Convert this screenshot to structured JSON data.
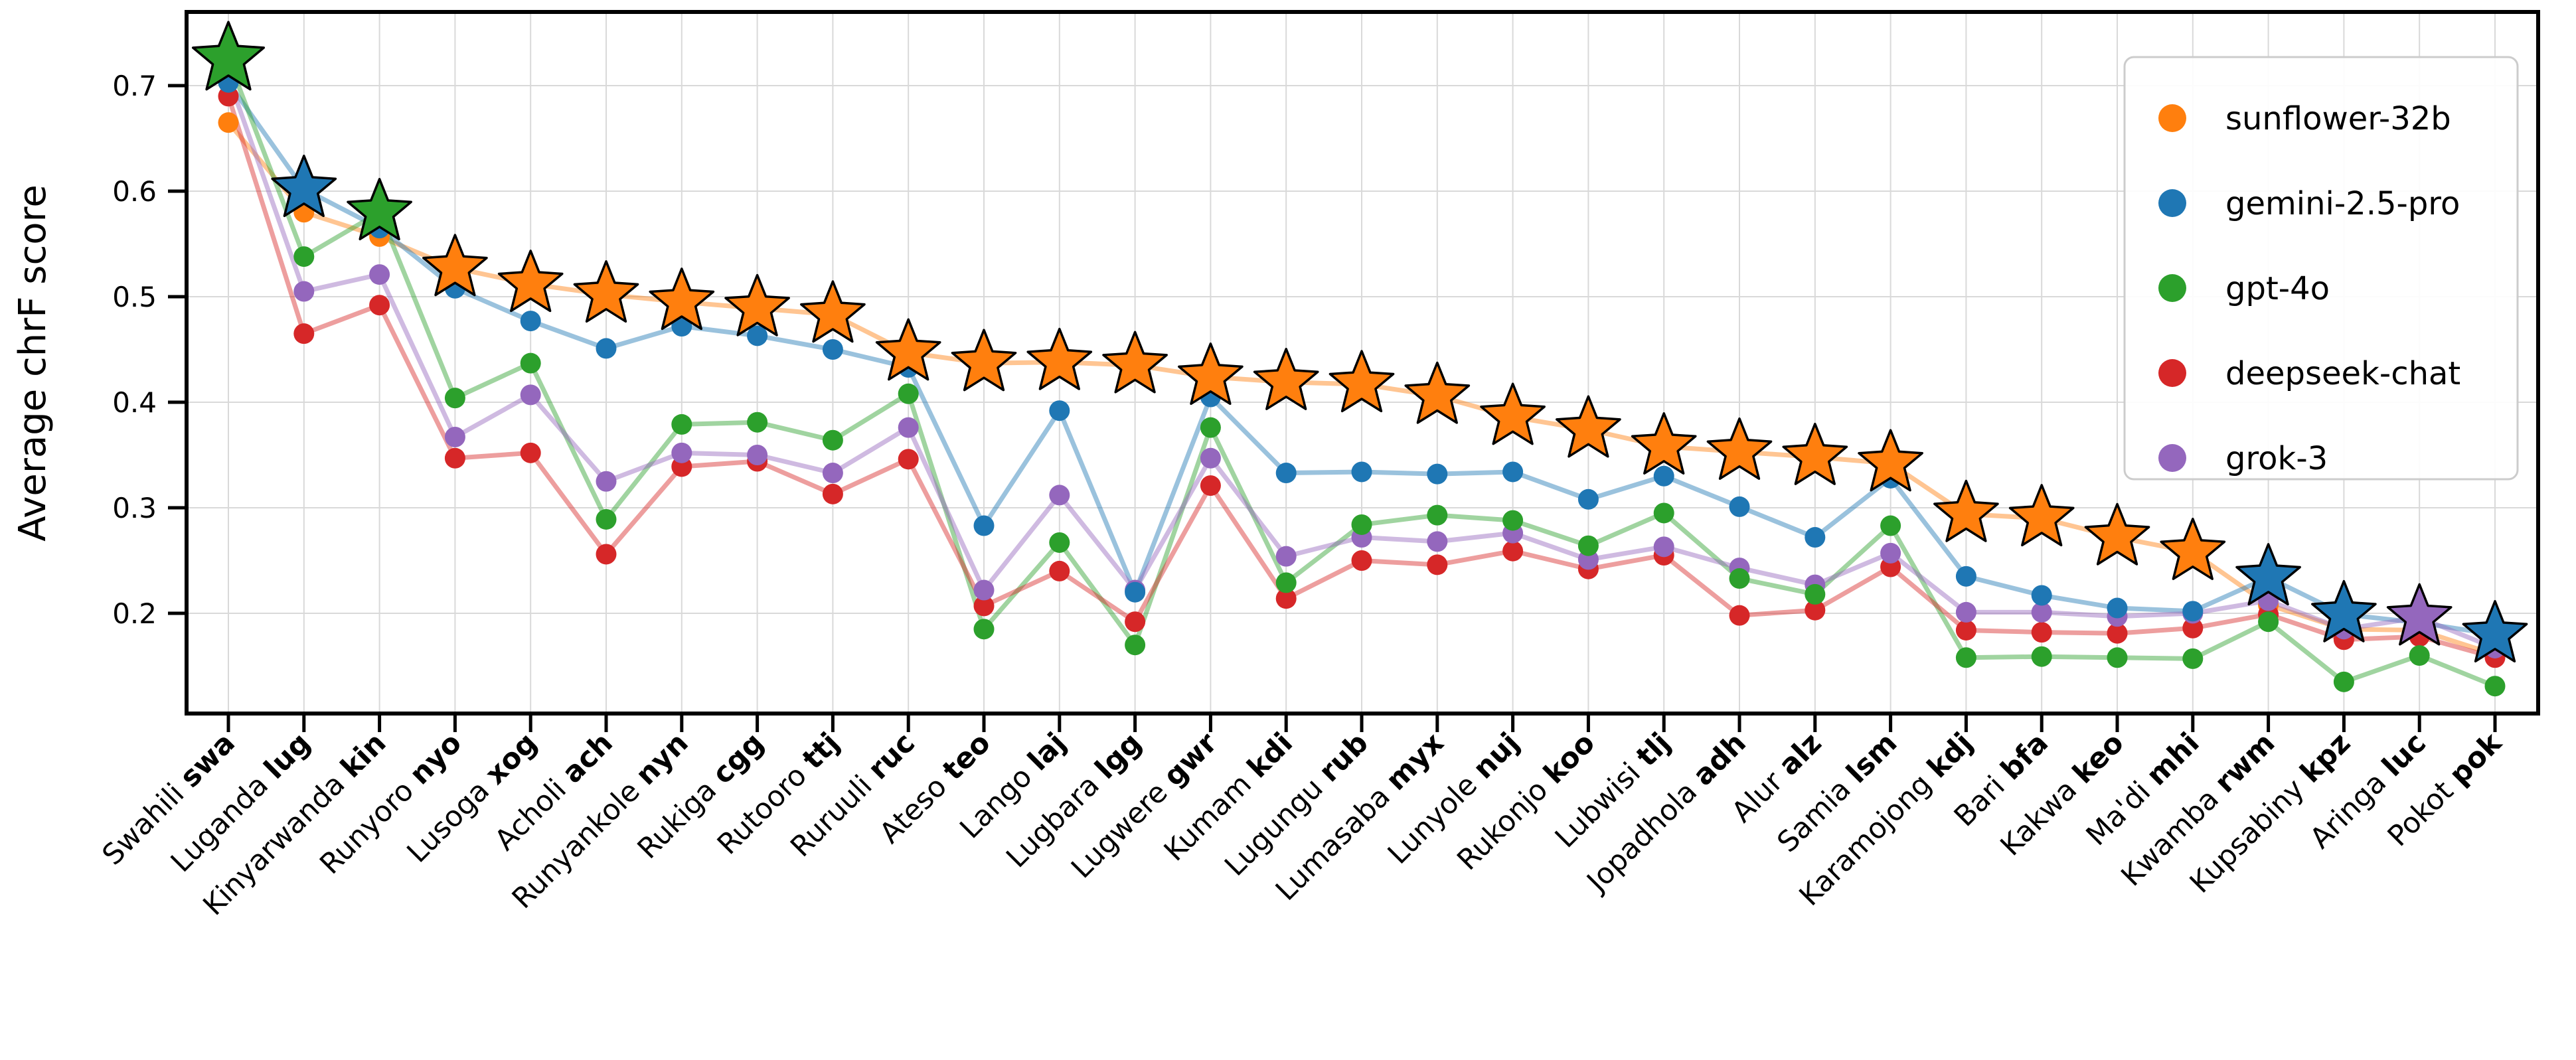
{
  "chart_data": {
    "type": "line",
    "title": "",
    "xlabel": "",
    "ylabel": "Average chrF score",
    "ylim": [
      0.1,
      0.77
    ],
    "yticks": [
      0.2,
      0.3,
      0.4,
      0.5,
      0.6,
      0.7
    ],
    "grid": true,
    "legend_position": "upper right",
    "marker_note": "star marker = best model for that language; circles = other models",
    "categories": [
      {
        "name": "Swahili",
        "code": "swa"
      },
      {
        "name": "Luganda",
        "code": "lug"
      },
      {
        "name": "Kinyarwanda",
        "code": "kin"
      },
      {
        "name": "Runyoro",
        "code": "nyo"
      },
      {
        "name": "Lusoga",
        "code": "xog"
      },
      {
        "name": "Acholi",
        "code": "ach"
      },
      {
        "name": "Runyankole",
        "code": "nyn"
      },
      {
        "name": "Rukiga",
        "code": "cgg"
      },
      {
        "name": "Rutooro",
        "code": "ttj"
      },
      {
        "name": "Ruruuli",
        "code": "ruc"
      },
      {
        "name": "Ateso",
        "code": "teo"
      },
      {
        "name": "Lango",
        "code": "laj"
      },
      {
        "name": "Lugbara",
        "code": "lgg"
      },
      {
        "name": "Lugwere",
        "code": "gwr"
      },
      {
        "name": "Kumam",
        "code": "kdi"
      },
      {
        "name": "Lugungu",
        "code": "rub"
      },
      {
        "name": "Lumasaba",
        "code": "myx"
      },
      {
        "name": "Lunyole",
        "code": "nuj"
      },
      {
        "name": "Rukonjo",
        "code": "koo"
      },
      {
        "name": "Lubwisi",
        "code": "tlj"
      },
      {
        "name": "Jopadhola",
        "code": "adh"
      },
      {
        "name": "Alur",
        "code": "alz"
      },
      {
        "name": "Samia",
        "code": "lsm"
      },
      {
        "name": "Karamojong",
        "code": "kdj"
      },
      {
        "name": "Bari",
        "code": "bfa"
      },
      {
        "name": "Kakwa",
        "code": "keo"
      },
      {
        "name": "Ma'di",
        "code": "mhi"
      },
      {
        "name": "Kwamba",
        "code": "rwm"
      },
      {
        "name": "Kupsabiny",
        "code": "kpz"
      },
      {
        "name": "Aringa",
        "code": "luc"
      },
      {
        "name": "Pokot",
        "code": "pok"
      }
    ],
    "series": [
      {
        "name": "sunflower-32b",
        "color": "#ff7f0e",
        "values": [
          0.665,
          0.58,
          0.557,
          0.527,
          0.512,
          0.502,
          0.495,
          0.489,
          0.483,
          0.447,
          0.437,
          0.438,
          0.435,
          0.424,
          0.419,
          0.417,
          0.406,
          0.386,
          0.374,
          0.358,
          0.353,
          0.348,
          0.342,
          0.294,
          0.29,
          0.272,
          0.258,
          0.208,
          0.185,
          0.184,
          0.161
        ]
      },
      {
        "name": "gemini-2.5-pro",
        "color": "#1f77b4",
        "values": [
          0.703,
          0.602,
          0.565,
          0.508,
          0.477,
          0.451,
          0.472,
          0.463,
          0.45,
          0.433,
          0.283,
          0.392,
          0.22,
          0.405,
          0.333,
          0.334,
          0.332,
          0.334,
          0.308,
          0.33,
          0.301,
          0.272,
          0.328,
          0.235,
          0.217,
          0.205,
          0.202,
          0.234,
          0.199,
          0.191,
          0.18
        ]
      },
      {
        "name": "gpt-4o",
        "color": "#2ca02c",
        "values": [
          0.725,
          0.538,
          0.58,
          0.404,
          0.437,
          0.289,
          0.379,
          0.381,
          0.364,
          0.408,
          0.185,
          0.267,
          0.17,
          0.376,
          0.229,
          0.284,
          0.293,
          0.288,
          0.264,
          0.295,
          0.233,
          0.218,
          0.283,
          0.158,
          0.159,
          0.158,
          0.157,
          0.192,
          0.135,
          0.16,
          0.131
        ]
      },
      {
        "name": "deepseek-chat",
        "color": "#d62728",
        "values": [
          0.69,
          0.465,
          0.492,
          0.347,
          0.352,
          0.256,
          0.339,
          0.344,
          0.313,
          0.346,
          0.207,
          0.24,
          0.192,
          0.321,
          0.214,
          0.25,
          0.246,
          0.259,
          0.242,
          0.255,
          0.198,
          0.203,
          0.244,
          0.184,
          0.182,
          0.181,
          0.186,
          0.199,
          0.175,
          0.178,
          0.158
        ]
      },
      {
        "name": "grok-3",
        "color": "#9467bd",
        "values": [
          0.708,
          0.505,
          0.521,
          0.367,
          0.407,
          0.325,
          0.352,
          0.35,
          0.333,
          0.376,
          0.222,
          0.312,
          0.222,
          0.347,
          0.254,
          0.272,
          0.268,
          0.276,
          0.251,
          0.263,
          0.243,
          0.227,
          0.257,
          0.201,
          0.201,
          0.197,
          0.2,
          0.212,
          0.185,
          0.196,
          0.167
        ]
      }
    ],
    "best_model_per_language": [
      "gpt-4o",
      "gemini-2.5-pro",
      "gpt-4o",
      "sunflower-32b",
      "sunflower-32b",
      "sunflower-32b",
      "sunflower-32b",
      "sunflower-32b",
      "sunflower-32b",
      "sunflower-32b",
      "sunflower-32b",
      "sunflower-32b",
      "sunflower-32b",
      "sunflower-32b",
      "sunflower-32b",
      "sunflower-32b",
      "sunflower-32b",
      "sunflower-32b",
      "sunflower-32b",
      "sunflower-32b",
      "sunflower-32b",
      "sunflower-32b",
      "sunflower-32b",
      "sunflower-32b",
      "sunflower-32b",
      "sunflower-32b",
      "sunflower-32b",
      "gemini-2.5-pro",
      "gemini-2.5-pro",
      "grok-3",
      "gemini-2.5-pro"
    ],
    "legend_entries": [
      "sunflower-32b",
      "gemini-2.5-pro",
      "gpt-4o",
      "deepseek-chat",
      "grok-3"
    ]
  }
}
